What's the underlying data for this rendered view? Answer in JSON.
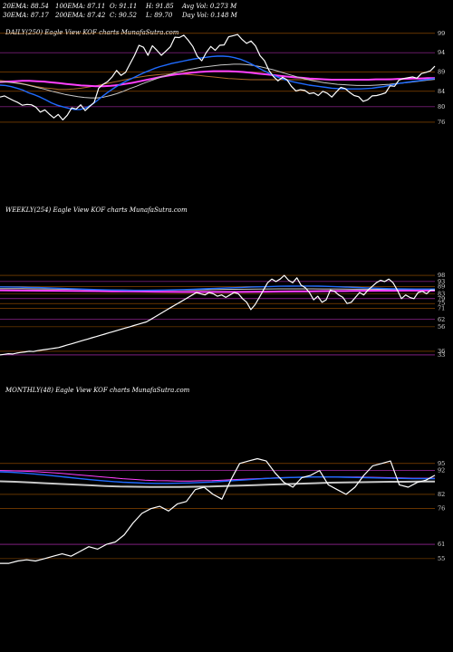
{
  "header": {
    "row1": [
      "20EMA: 88.54",
      "100EMA: 87.11",
      "O: 91.11",
      "H: 91.85",
      "Avg Vol: 0.273 M"
    ],
    "row2": [
      "30EMA: 87.17",
      "200EMA: 87.42",
      "C: 90.52",
      "L: 89.70",
      "Day Vol: 0.148 M"
    ]
  },
  "colors": {
    "background": "#000000",
    "price": "#ffffff",
    "ema_short": "#1f6bff",
    "ema_mid": "#c8c8c8",
    "ema_long": "#ff40ff",
    "ema_brown": "#b06a2a",
    "grid_orange": "#cc6a00",
    "grid_magenta": "#ff40ff"
  },
  "chart_data": [
    {
      "type": "line",
      "title": "DAILY(250) Eagle  View  KOF charts MunafaSutra.com",
      "ylim": [
        72,
        102
      ],
      "yticks": [
        99,
        94,
        89,
        84,
        80,
        76
      ],
      "grid": "horizontal",
      "series": [
        {
          "values": [
            82.5,
            82.8,
            82.2,
            81.6,
            81.1,
            80.4,
            80.6,
            80.5,
            79.9,
            78.6,
            79.2,
            78.1,
            77.1,
            78.0,
            76.6,
            77.8,
            79.7,
            79.4,
            80.5,
            79.0,
            80.1,
            81.1,
            84.8,
            85.8,
            86.5,
            87.7,
            89.4,
            88.1,
            88.9,
            91.1,
            93.3,
            95.9,
            95.4,
            93.3,
            95.8,
            94.6,
            93.3,
            94.4,
            95.5,
            98.0,
            97.9,
            98.5,
            97.2,
            95.6,
            93.1,
            91.9,
            94.0,
            95.6,
            94.6,
            95.9,
            96.0,
            98.1,
            98.4,
            98.7,
            97.4,
            96.4,
            97.0,
            95.7,
            93.2,
            91.9,
            89.4,
            87.8,
            86.7,
            87.6,
            87.0,
            85.3,
            84.1,
            84.4,
            84.2,
            83.4,
            83.6,
            82.9,
            84.0,
            83.5,
            82.5,
            83.8,
            85.0,
            84.7,
            83.7,
            82.9,
            82.6,
            81.4,
            81.8,
            82.8,
            82.9,
            83.2,
            83.6,
            85.4,
            85.3,
            86.9,
            87.3,
            87.5,
            87.7,
            87.4,
            88.6,
            88.9,
            89.3,
            90.5
          ]
        },
        {
          "values": [
            85.6,
            85.5,
            85.2,
            84.8,
            84.3,
            83.6,
            83.1,
            82.5,
            81.8,
            81.0,
            80.4,
            80.0,
            79.6,
            79.3,
            79.3,
            79.7,
            80.5,
            81.6,
            82.8,
            83.9,
            84.9,
            85.8,
            86.6,
            87.3,
            88.0,
            88.7,
            89.3,
            89.9,
            90.4,
            90.8,
            91.2,
            91.5,
            91.8,
            92.1,
            92.4,
            92.6,
            92.8,
            93.0,
            93.1,
            93.1,
            93.0,
            92.7,
            92.3,
            91.7,
            91.0,
            90.2,
            89.4,
            88.7,
            88.0,
            87.4,
            86.9,
            86.5,
            86.2,
            85.9,
            85.6,
            85.4,
            85.2,
            85.0,
            84.8,
            84.7,
            84.6,
            84.6,
            84.6,
            84.6,
            84.7,
            84.8,
            85.0,
            85.2,
            85.5,
            85.8,
            86.1,
            86.3,
            86.5,
            86.7,
            86.9,
            87.1,
            87.3
          ]
        },
        {
          "values": [
            86.5,
            86.4,
            86.2,
            86.0,
            85.7,
            85.3,
            84.9,
            84.5,
            84.0,
            83.6,
            83.2,
            82.9,
            82.6,
            82.4,
            82.3,
            82.3,
            82.5,
            82.9,
            83.4,
            84.0,
            84.7,
            85.3,
            86.0,
            86.6,
            87.2,
            87.8,
            88.3,
            88.8,
            89.2,
            89.6,
            89.9,
            90.2,
            90.4,
            90.6,
            90.8,
            90.9,
            91.0,
            91.0,
            90.9,
            90.7,
            90.4,
            90.0,
            89.6,
            89.1,
            88.6,
            88.1,
            87.6,
            87.2,
            86.8,
            86.5,
            86.2,
            86.0,
            85.8,
            85.7,
            85.6,
            85.5,
            85.5,
            85.5,
            85.6,
            85.7,
            85.8,
            86.0,
            86.1,
            86.3,
            86.5,
            86.7,
            86.9,
            87.1
          ]
        },
        {
          "values": [
            86.4,
            86.5,
            86.6,
            86.7,
            86.7,
            86.6,
            86.5,
            86.3,
            86.1,
            85.9,
            85.7,
            85.5,
            85.4,
            85.3,
            85.3,
            85.4,
            85.6,
            85.9,
            86.2,
            86.6,
            87.0,
            87.4,
            87.8,
            88.1,
            88.4,
            88.6,
            88.8,
            89.0,
            89.1,
            89.2,
            89.2,
            89.2,
            89.1,
            89.0,
            88.8,
            88.6,
            88.4,
            88.2,
            88.0,
            87.8,
            87.6,
            87.5,
            87.3,
            87.2,
            87.1,
            87.0,
            87.0,
            87.0,
            87.0,
            87.0,
            87.0,
            87.1,
            87.1,
            87.1,
            87.2,
            87.2,
            87.3,
            87.3,
            87.4,
            87.4
          ]
        },
        {
          "values": [
            86.8,
            86.6,
            86.3,
            86.0,
            85.6,
            85.2,
            84.9,
            84.7,
            84.5,
            84.5,
            84.6,
            84.8,
            85.1,
            85.4,
            85.8,
            86.2,
            86.6,
            87.0,
            87.4,
            87.7,
            88.0,
            88.2,
            88.4,
            88.5,
            88.5,
            88.4,
            88.3,
            88.1,
            87.9,
            87.7,
            87.5,
            87.3,
            87.2,
            87.1,
            87.0,
            87.0,
            87.0,
            87.0,
            87.0,
            87.0,
            87.0,
            87.0,
            87.0,
            87.0,
            87.0,
            87.0,
            87.0,
            87.0,
            87.0,
            87.1,
            87.1,
            87.1,
            87.1,
            87.2,
            87.2,
            87.3,
            87.3,
            87.4,
            87.4,
            87.4
          ]
        }
      ]
    },
    {
      "type": "line",
      "title": "WEEKLY(254) Eagle  View  KOF charts MunafaSutra.com",
      "ylim": [
        30,
        104
      ],
      "yticks": [
        98,
        93,
        89,
        83,
        79,
        75,
        71,
        62,
        56,
        36,
        33
      ],
      "grid": "horizontal",
      "series": [
        {
          "values": [
            33,
            33.5,
            34,
            33.8,
            34.5,
            35,
            35.5,
            36,
            35.8,
            36.5,
            37,
            37.5,
            38,
            38.5,
            39,
            40,
            41,
            42,
            43,
            44,
            45,
            46,
            47,
            48,
            49,
            50,
            51,
            52,
            53,
            54,
            55,
            56,
            57,
            58,
            59,
            60,
            62,
            64,
            66,
            68,
            70,
            72,
            74,
            76,
            78,
            80,
            82,
            84,
            83,
            82,
            84,
            83,
            81,
            82,
            80,
            82,
            84,
            83,
            79,
            76,
            70,
            74,
            80,
            86,
            92,
            95,
            93,
            95,
            98,
            94,
            92,
            96,
            90,
            88,
            84,
            78,
            81,
            76,
            78,
            86,
            85,
            82,
            80,
            75,
            76,
            80,
            84,
            82,
            86,
            89,
            92,
            94,
            93,
            95,
            92,
            86,
            79,
            82,
            80,
            79,
            84,
            85,
            83,
            86,
            86
          ]
        },
        {
          "values": [
            88.6,
            88.5,
            88.4,
            88.2,
            88.0,
            87.8,
            87.5,
            87.2,
            86.9,
            86.6,
            86.4,
            86.2,
            86.0,
            85.9,
            85.8,
            85.8,
            85.9,
            86.0,
            86.2,
            86.4,
            86.7,
            87.0,
            87.3,
            87.6,
            87.9,
            88.2,
            88.5,
            88.7,
            88.9,
            89.1,
            89.2,
            89.3,
            89.3,
            89.2,
            89.0,
            88.7,
            88.4,
            88.1,
            87.8,
            87.5,
            87.2,
            87.0,
            86.9,
            86.8,
            86.8,
            86.8
          ]
        },
        {
          "values": [
            87.2,
            87.2,
            87.1,
            87.0,
            86.9,
            86.8,
            86.6,
            86.5,
            86.3,
            86.2,
            86.1,
            86.0,
            85.9,
            85.9,
            85.9,
            85.9,
            86.0,
            86.1,
            86.2,
            86.3,
            86.5,
            86.6,
            86.7,
            86.8,
            86.9,
            87.0,
            87.0,
            87.0,
            87.0,
            86.9,
            86.9,
            86.8,
            86.7,
            86.7,
            86.6,
            86.6,
            86.6,
            86.6,
            86.6,
            86.6
          ]
        },
        {
          "values": [
            85.8,
            85.7,
            85.6,
            85.5,
            85.4,
            85.3,
            85.2,
            85.1,
            85.0,
            84.9,
            84.8,
            84.7,
            84.6,
            84.5,
            84.5,
            84.5,
            84.5,
            84.5,
            84.6,
            84.7,
            84.8,
            84.9,
            85.0,
            85.1,
            85.2,
            85.3,
            85.4,
            85.5,
            85.5,
            85.6,
            85.6,
            85.6
          ]
        }
      ]
    },
    {
      "type": "line",
      "title": "MONTHLY(48) Eagle  View  KOF charts MunafaSutra.com",
      "ylim": [
        50,
        101
      ],
      "yticks": [
        95,
        92,
        82,
        76,
        61,
        55
      ],
      "grid": "horizontal",
      "series": [
        {
          "values": [
            53,
            53,
            54,
            54.5,
            54,
            55,
            56,
            57,
            56,
            58,
            60,
            59,
            61,
            62,
            65,
            70,
            74,
            76,
            77,
            75,
            78,
            79,
            84,
            85,
            82,
            80,
            88,
            95,
            96,
            97,
            96,
            91,
            87,
            85,
            89,
            90,
            92,
            86,
            84,
            82,
            85,
            90,
            94,
            95,
            96,
            86,
            85,
            87,
            88,
            90
          ]
        },
        {
          "values": [
            91.5,
            91.3,
            91.0,
            90.6,
            90.2,
            89.7,
            89.2,
            88.7,
            88.2,
            87.8,
            87.4,
            87.1,
            86.9,
            86.7,
            86.6,
            86.6,
            86.7,
            86.8,
            87.0,
            87.2,
            87.5,
            87.8,
            88.1,
            88.4,
            88.7,
            88.9,
            89.1,
            89.2,
            89.3,
            89.3,
            89.3,
            89.2,
            89.1,
            89.0,
            88.9,
            88.8,
            88.7,
            88.6,
            88.6,
            88.6
          ]
        },
        {
          "values": [
            92.0,
            91.9,
            91.8,
            91.6,
            91.3,
            91.0,
            90.6,
            90.2,
            89.8,
            89.4,
            89.0,
            88.6,
            88.3,
            88.0,
            87.8,
            87.7,
            87.6,
            87.6,
            87.7,
            87.8,
            88.0,
            88.2,
            88.4,
            88.6,
            88.8,
            89.0,
            89.1,
            89.2,
            89.3,
            89.3,
            89.3,
            89.3,
            89.3,
            89.2,
            89.1,
            89.0,
            88.9,
            88.8,
            88.8,
            88.8
          ]
        },
        {
          "values": [
            87.5,
            87.3,
            87.0,
            86.7,
            86.4,
            86.1,
            85.8,
            85.5,
            85.3,
            85.2,
            85.1,
            85.1,
            85.1,
            85.2,
            85.3,
            85.5,
            85.7,
            85.9,
            86.1,
            86.3,
            86.5,
            86.7,
            86.9,
            87.0,
            87.1,
            87.2,
            87.3,
            87.3,
            87.4,
            87.4
          ]
        }
      ]
    }
  ]
}
